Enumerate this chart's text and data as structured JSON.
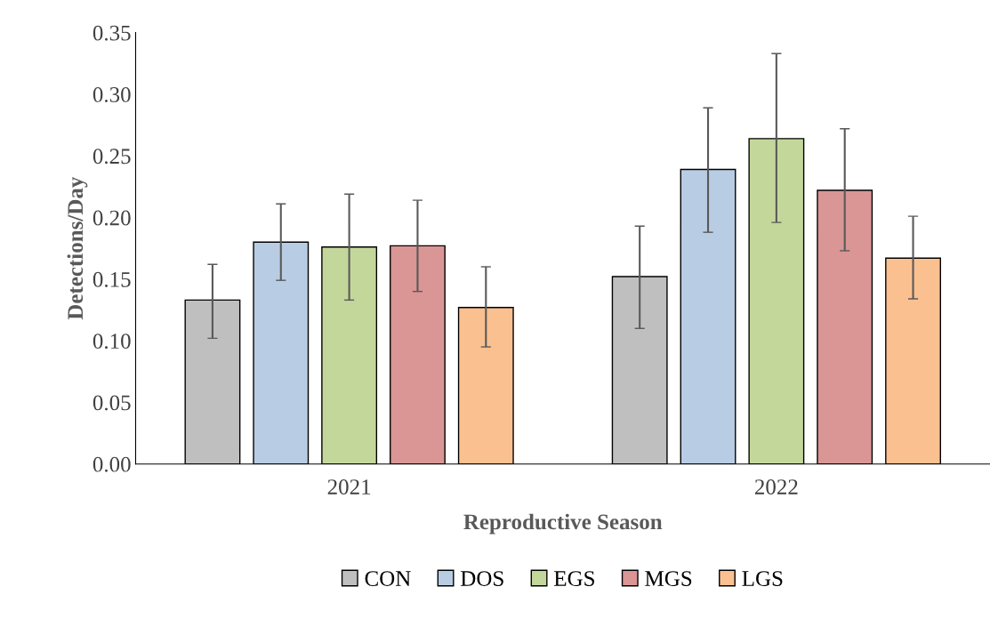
{
  "chart_data": {
    "type": "bar",
    "xlabel": "Reproductive Season",
    "ylabel": "Detections/Day",
    "categories": [
      "2021",
      "2022"
    ],
    "series": [
      {
        "name": "CON",
        "color": "#bfbfbf",
        "values": [
          0.133,
          0.152
        ],
        "errors": [
          [
            0.102,
            0.162
          ],
          [
            0.11,
            0.193
          ]
        ]
      },
      {
        "name": "DOS",
        "color": "#b8cce4",
        "values": [
          0.18,
          0.239
        ],
        "errors": [
          [
            0.149,
            0.211
          ],
          [
            0.188,
            0.289
          ]
        ]
      },
      {
        "name": "EGS",
        "color": "#c4d79b",
        "values": [
          0.176,
          0.264
        ],
        "errors": [
          [
            0.133,
            0.219
          ],
          [
            0.196,
            0.333
          ]
        ]
      },
      {
        "name": "MGS",
        "color": "#d99694",
        "values": [
          0.177,
          0.222
        ],
        "errors": [
          [
            0.14,
            0.214
          ],
          [
            0.173,
            0.272
          ]
        ]
      },
      {
        "name": "LGS",
        "color": "#fac090",
        "values": [
          0.127,
          0.167
        ],
        "errors": [
          [
            0.095,
            0.16
          ],
          [
            0.134,
            0.201
          ]
        ]
      }
    ],
    "ylim": [
      0,
      0.35
    ],
    "yticks": [
      {
        "value": 0,
        "label": "0.00"
      },
      {
        "value": 0.05,
        "label": "0.05"
      },
      {
        "value": 0.1,
        "label": "0.10"
      },
      {
        "value": 0.15,
        "label": "0.15"
      },
      {
        "value": 0.2,
        "label": "0.20"
      },
      {
        "value": 0.25,
        "label": "0.25"
      },
      {
        "value": 0.3,
        "label": "0.30"
      },
      {
        "value": 0.35,
        "label": "0.35"
      }
    ],
    "grid": false,
    "legend": "bottom"
  }
}
